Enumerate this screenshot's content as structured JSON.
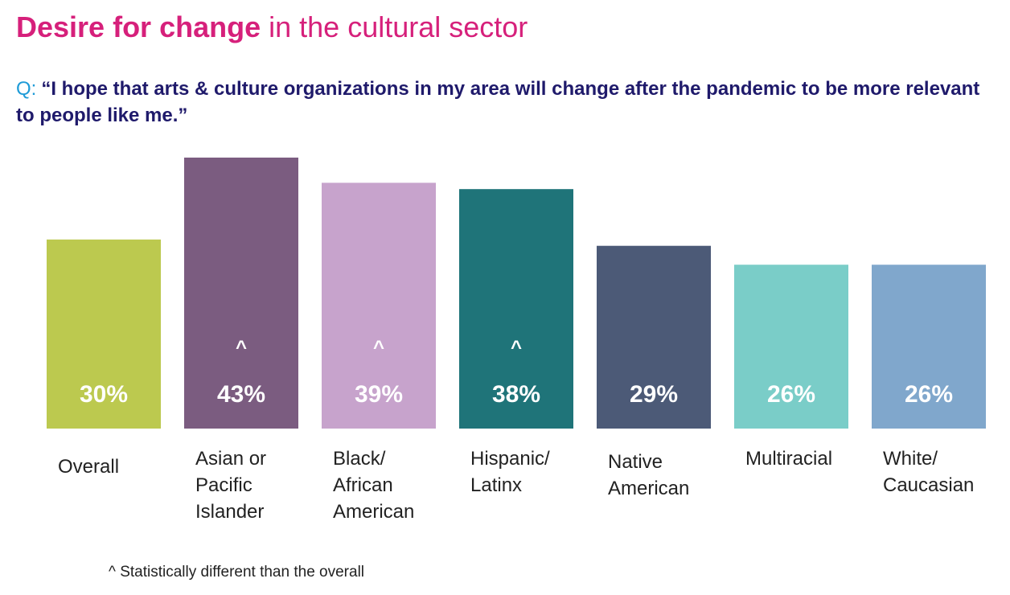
{
  "title": {
    "highlight": "Desire for change",
    "rest": "in the cultural sector"
  },
  "question": {
    "prefix": "Q:",
    "text": "“I hope that arts & culture organizations in my area will change after the pandemic to be more relevant to people like me.”"
  },
  "footnote": "^ Statistically different than the overall",
  "chart_data": {
    "type": "bar",
    "categories": [
      "Overall",
      "Asian or Pacific Islander",
      "Black/ African American",
      "Hispanic/ Latinx",
      "Native American",
      "Multiracial",
      "White/ Caucasian"
    ],
    "category_lines": [
      [
        "Overall"
      ],
      [
        "Asian or",
        "Pacific",
        "Islander"
      ],
      [
        "Black/",
        "African",
        "American"
      ],
      [
        "Hispanic/",
        "Latinx"
      ],
      [
        "Native",
        "American"
      ],
      [
        "Multiracial"
      ],
      [
        "White/",
        "Caucasian"
      ]
    ],
    "values": [
      30,
      43,
      39,
      38,
      29,
      26,
      26
    ],
    "value_labels": [
      "30%",
      "43%",
      "39%",
      "38%",
      "29%",
      "26%",
      "26%"
    ],
    "significant": [
      false,
      true,
      true,
      true,
      false,
      false,
      false
    ],
    "significance_marker": "^",
    "colors": [
      "#bcc94f",
      "#7b5c80",
      "#c7a3cc",
      "#1f7479",
      "#4c5a77",
      "#7acdc8",
      "#80a7cc"
    ],
    "ylim": [
      0,
      43
    ],
    "xlabel": "",
    "ylabel": "",
    "grid": false,
    "legend": "none"
  }
}
